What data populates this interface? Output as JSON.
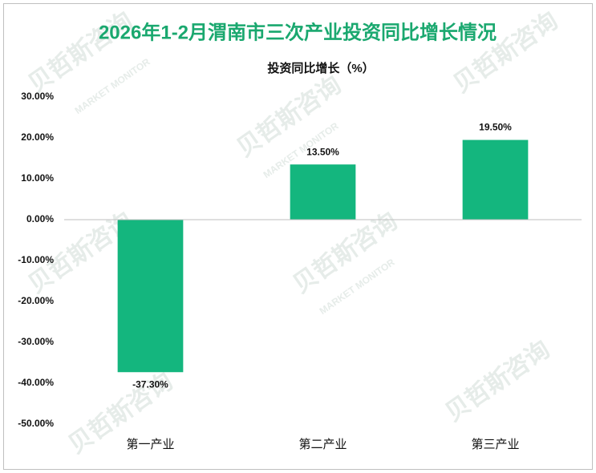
{
  "chart_data": {
    "type": "bar",
    "title": "2026年1-2月渭南市三次产业投资同比增长情况",
    "subtitle": "投资同比增长（%）",
    "watermark": "贝哲斯咨询",
    "watermark_sub": "MARKET MONITOR",
    "categories": [
      "第一产业",
      "第二产业",
      "第三产业"
    ],
    "values": [
      -37.3,
      13.5,
      19.5
    ],
    "value_labels": [
      "-37.30%",
      "13.50%",
      "19.50%"
    ],
    "color": "#14b67e",
    "ylim": [
      -50,
      30
    ],
    "yticks": [
      {
        "value": -50,
        "label": "-50.00%"
      },
      {
        "value": -40,
        "label": "-40.00%"
      },
      {
        "value": -30,
        "label": "-30.00%"
      },
      {
        "value": -20,
        "label": "-20.00%"
      },
      {
        "value": -10,
        "label": "-10.00%"
      },
      {
        "value": 0,
        "label": "0.00%"
      },
      {
        "value": 10,
        "label": "10.00%"
      },
      {
        "value": 20,
        "label": "20.00%"
      },
      {
        "value": 30,
        "label": "30.00%"
      }
    ],
    "grid": false
  }
}
